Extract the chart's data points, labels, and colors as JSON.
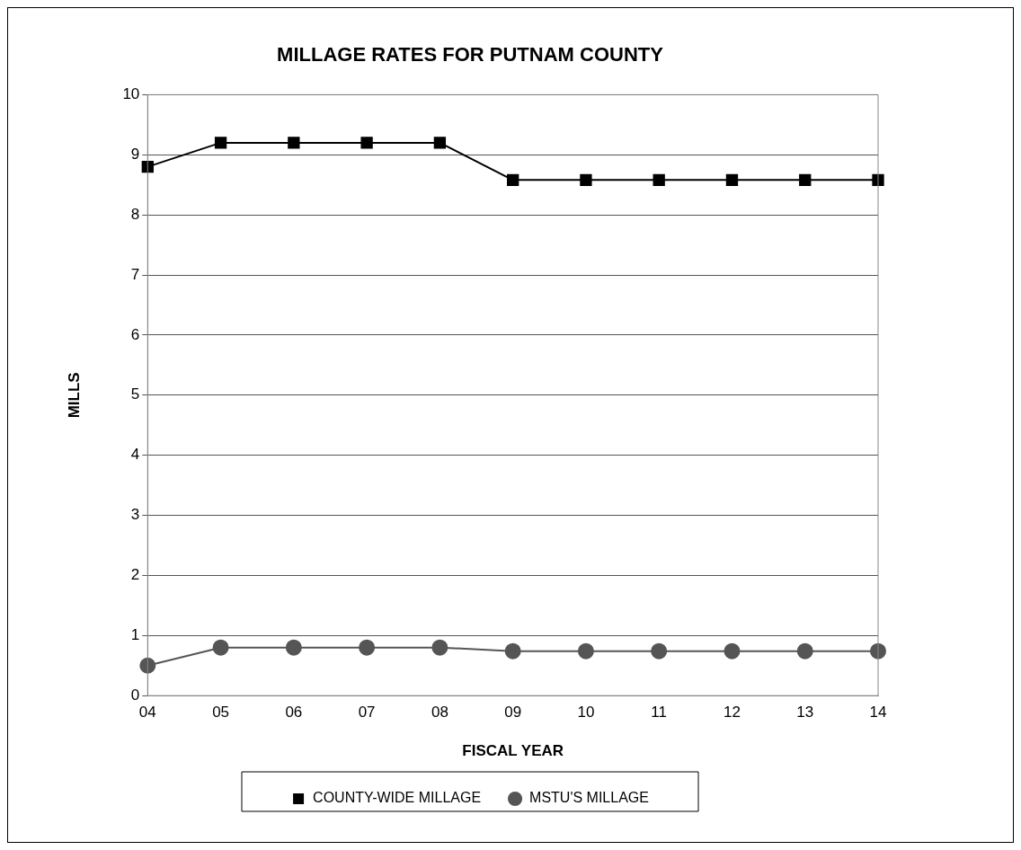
{
  "chart_data": {
    "type": "line",
    "title": "MILLAGE RATES FOR PUTNAM COUNTY",
    "xlabel": "FISCAL YEAR",
    "ylabel": "MILLS",
    "categories": [
      "04",
      "05",
      "06",
      "07",
      "08",
      "09",
      "10",
      "11",
      "12",
      "13",
      "14"
    ],
    "series": [
      {
        "name": "COUNTY-WIDE MILLAGE",
        "color": "#000000",
        "marker": "square",
        "values": [
          8.8,
          9.2,
          9.2,
          9.2,
          9.2,
          8.58,
          8.58,
          8.58,
          8.58,
          8.58,
          8.58
        ]
      },
      {
        "name": "MSTU'S MILLAGE",
        "color": "#555555",
        "marker": "circle",
        "values": [
          0.5,
          0.8,
          0.8,
          0.8,
          0.8,
          0.74,
          0.74,
          0.74,
          0.74,
          0.74,
          0.74
        ]
      }
    ],
    "ylim": [
      0,
      10
    ],
    "yticks": [
      0,
      1,
      2,
      3,
      4,
      5,
      6,
      7,
      8,
      9,
      10
    ],
    "grid": "y",
    "legend": "bottom",
    "line_style": "solid"
  }
}
